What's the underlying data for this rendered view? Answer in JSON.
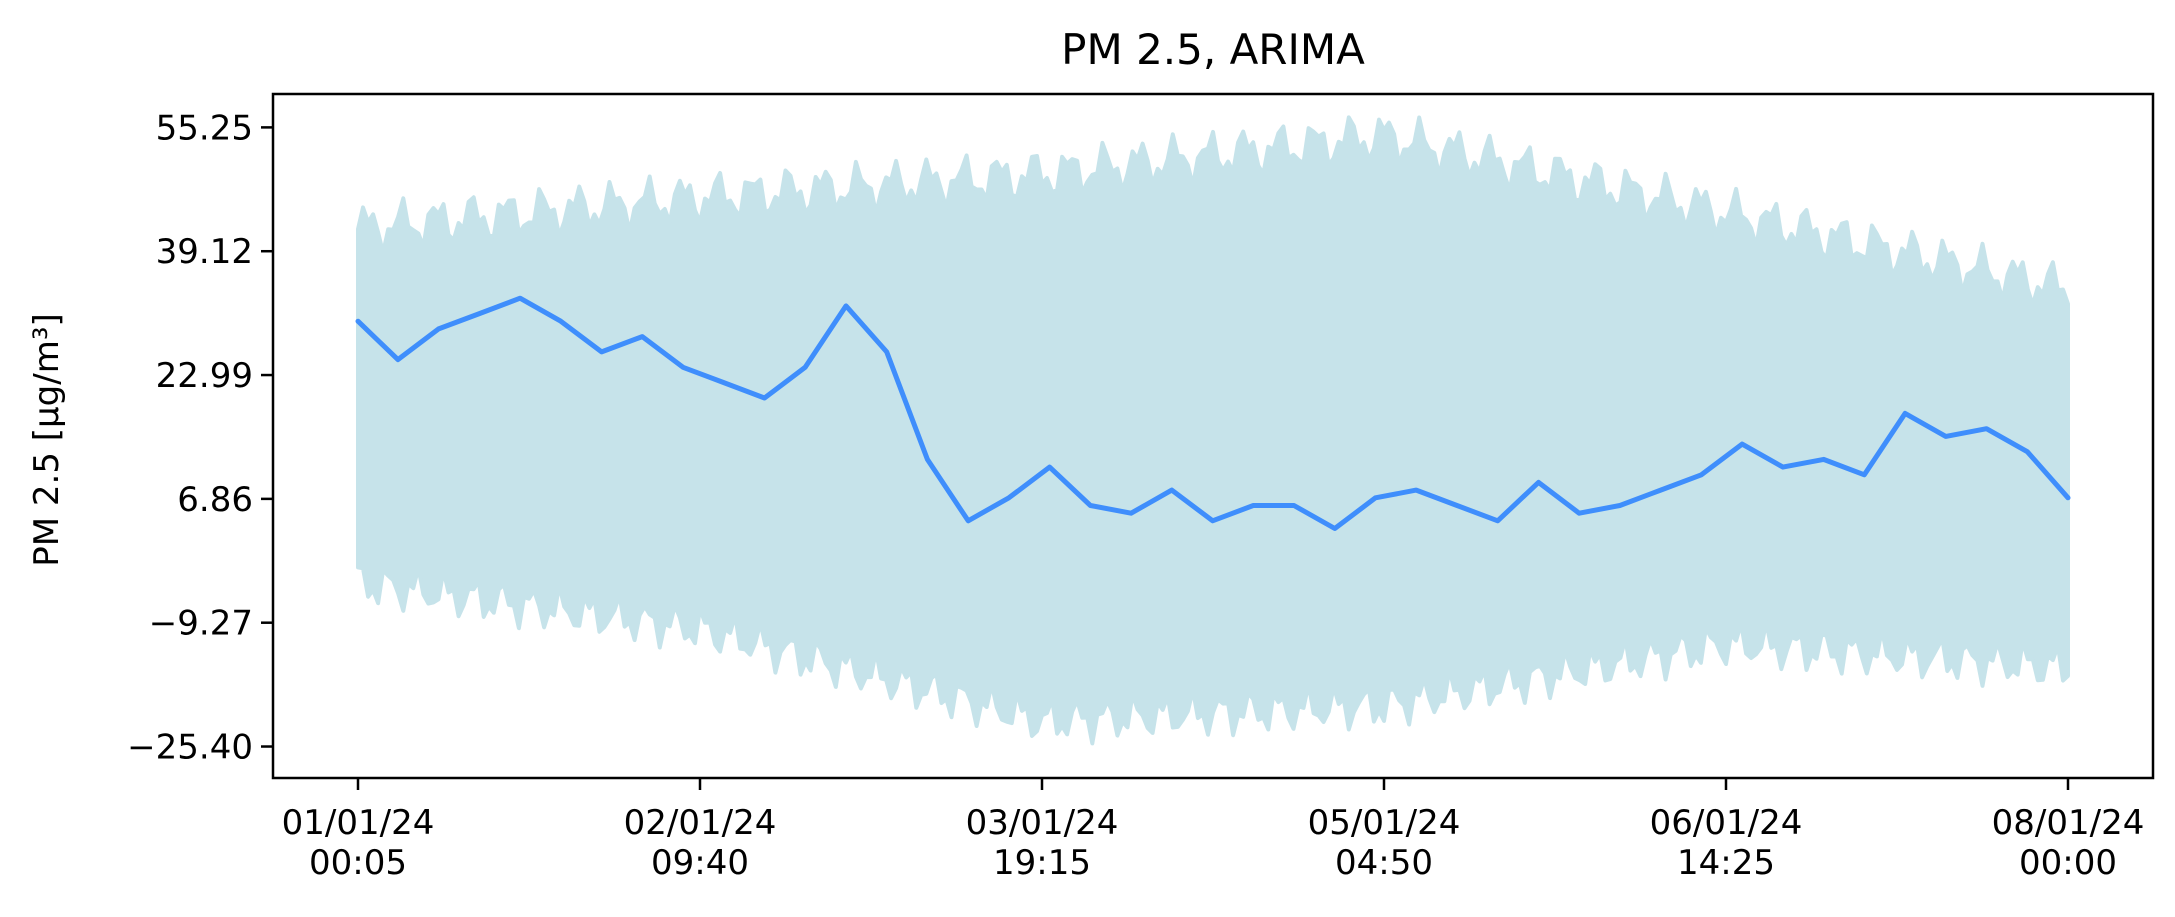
{
  "chart_data": {
    "type": "line",
    "title": "PM 2.5, ARIMA",
    "ylabel": "PM 2.5 [µg/m³]",
    "xlabel": "",
    "x_range": [
      "2024-01-01 00:05",
      "2024-01-08 00:00"
    ],
    "ylim": [
      -29.5,
      59.6
    ],
    "yticks": [
      {
        "value": 55.25,
        "label": "55.25"
      },
      {
        "value": 39.12,
        "label": "39.12"
      },
      {
        "value": 22.99,
        "label": "22.99"
      },
      {
        "value": 6.86,
        "label": "6.86"
      },
      {
        "value": -9.27,
        "label": "−9.27"
      },
      {
        "value": -25.4,
        "label": "−25.40"
      }
    ],
    "xticks": [
      {
        "value": "2024-01-01 00:05",
        "label": [
          "01/01/24",
          "00:05"
        ]
      },
      {
        "value": "2024-01-02 09:40",
        "label": [
          "02/01/24",
          "09:40"
        ]
      },
      {
        "value": "2024-01-03 19:15",
        "label": [
          "03/01/24",
          "19:15"
        ]
      },
      {
        "value": "2024-01-05 04:50",
        "label": [
          "05/01/24",
          "04:50"
        ]
      },
      {
        "value": "2024-01-06 14:25",
        "label": [
          "06/01/24",
          "14:25"
        ]
      },
      {
        "value": "2024-01-08 00:00",
        "label": [
          "08/01/24",
          "00:00"
        ]
      }
    ],
    "grid": false,
    "legend": "none",
    "colors": {
      "observed": "#3f8efc",
      "samples": "#c6e3ea"
    },
    "samples_band": {
      "description": "many simulated ARIMA sample paths",
      "x": [
        "2024-01-01 00:05",
        "2024-01-02 09:40",
        "2024-01-03 19:15",
        "2024-01-05 04:50",
        "2024-01-06 14:25",
        "2024-01-08 00:00"
      ],
      "upper_envelope": [
        42.0,
        46.0,
        49.0,
        54.0,
        44.0,
        34.0
      ],
      "lower_envelope": [
        -4.0,
        -10.0,
        -22.0,
        -20.0,
        -12.0,
        -15.0
      ]
    },
    "series": [
      {
        "x": [
          "2024-01-01 00:05",
          "2024-01-01 04:00",
          "2024-01-01 08:00",
          "2024-01-01 12:00",
          "2024-01-01 16:00",
          "2024-01-01 20:00",
          "2024-01-02 00:00",
          "2024-01-02 04:00",
          "2024-01-02 08:00",
          "2024-01-02 12:00",
          "2024-01-02 16:00",
          "2024-01-02 20:00",
          "2024-01-03 00:00",
          "2024-01-03 04:00",
          "2024-01-03 08:00",
          "2024-01-03 12:00",
          "2024-01-03 16:00",
          "2024-01-03 20:00",
          "2024-01-04 00:00",
          "2024-01-04 04:00",
          "2024-01-04 08:00",
          "2024-01-04 12:00",
          "2024-01-04 16:00",
          "2024-01-04 20:00",
          "2024-01-05 00:00",
          "2024-01-05 04:00",
          "2024-01-05 08:00",
          "2024-01-05 12:00",
          "2024-01-05 16:00",
          "2024-01-05 20:00",
          "2024-01-06 00:00",
          "2024-01-06 04:00",
          "2024-01-06 08:00",
          "2024-01-06 12:00",
          "2024-01-06 16:00",
          "2024-01-06 20:00",
          "2024-01-07 00:00",
          "2024-01-07 04:00",
          "2024-01-07 08:00",
          "2024-01-07 12:00",
          "2024-01-07 16:00",
          "2024-01-07 20:00",
          "2024-01-08 00:00"
        ],
        "values": [
          30,
          25,
          29,
          31,
          33,
          30,
          26,
          28,
          24,
          22,
          20,
          24,
          32,
          26,
          12,
          4,
          7,
          11,
          6,
          5,
          8,
          4,
          6,
          6,
          3,
          7,
          8,
          6,
          4,
          9,
          5,
          6,
          8,
          10,
          14,
          11,
          12,
          10,
          18,
          15,
          16,
          13,
          7
        ]
      }
    ]
  }
}
